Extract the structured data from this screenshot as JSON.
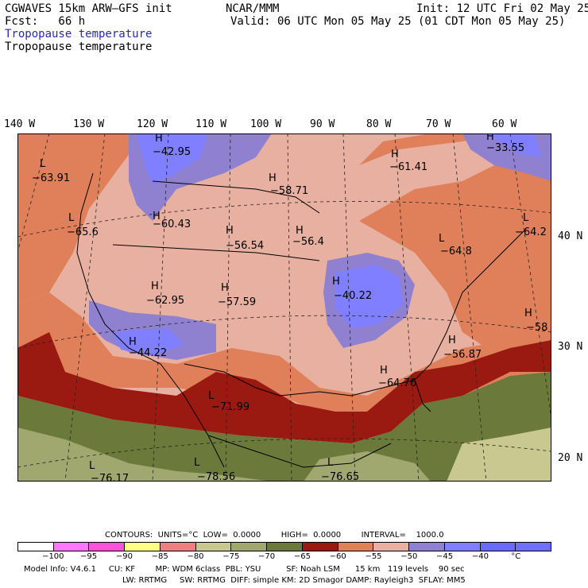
{
  "header": {
    "model": "CGWAVES 15km ARW–GFS init",
    "fcst_label": "Fcst:   66 h",
    "org": "NCAR/MMM",
    "init": "Init: 12 UTC Fri 02 May 25",
    "valid": "Valid: 06 UTC Mon 05 May 25 (01 CDT Mon 05 May 25)",
    "field_blue": "Tropopause temperature",
    "field_black": "Tropopause temperature"
  },
  "axes": {
    "longitudes": [
      "140 W",
      "130 W",
      "120 W",
      "110 W",
      "100 W",
      "90 W",
      "80 W",
      "70 W",
      "60 W"
    ],
    "latitudes": [
      "40 N",
      "30 N",
      "20 N"
    ]
  },
  "map_labels": [
    {
      "hl": "L",
      "value": "−63.91"
    },
    {
      "hl": "L",
      "value": "−65.6"
    },
    {
      "hl": "H",
      "value": "−42.95"
    },
    {
      "hl": "H",
      "value": "−60.43"
    },
    {
      "hl": "H",
      "value": "−56.54"
    },
    {
      "hl": "H",
      "value": "−62.95"
    },
    {
      "hl": "H",
      "value": "−57.59"
    },
    {
      "hl": "H",
      "value": "−44.22"
    },
    {
      "hl": "L",
      "value": "−71.99"
    },
    {
      "hl": "L",
      "value": "−76.17"
    },
    {
      "hl": "L",
      "value": "−78.56"
    },
    {
      "hl": "L",
      "value": "−76.65"
    },
    {
      "hl": "H",
      "value": "−58.71"
    },
    {
      "hl": "H",
      "value": "−56.4"
    },
    {
      "hl": "H",
      "value": "−40.22"
    },
    {
      "hl": "H",
      "value": "−64.76"
    },
    {
      "hl": "H",
      "value": "−56.87"
    },
    {
      "hl": "H",
      "value": "−61.41"
    },
    {
      "hl": "H",
      "value": "−33.55"
    },
    {
      "hl": "L",
      "value": "−64.8"
    },
    {
      "hl": "L",
      "value": "−64.2"
    },
    {
      "hl": "H",
      "value": "−58"
    }
  ],
  "contours": {
    "line": "CONTOURS:  UNITS=°C  LOW=  0.0000        HIGH=  0.0000        INTERVAL=    1000.0"
  },
  "colorbar": {
    "colors": [
      "#ffffff",
      "#ff77ff",
      "#ff55d5",
      "#ffff88",
      "#f08080",
      "#c8c890",
      "#a0a870",
      "#6b7a3a",
      "#9a1a12",
      "#e0805a",
      "#e8b0a0",
      "#9080d0",
      "#7f7fff",
      "#6a6aff",
      "#7070ff"
    ],
    "labels": [
      "−100",
      "−95",
      "−90",
      "−85",
      "−80",
      "−75",
      "−70",
      "−65",
      "−60",
      "−55",
      "−50",
      "−45",
      "−40",
      "°C"
    ]
  },
  "footer": {
    "line1": "Model Info: V4.6.1     CU: KF        MP: WDM 6class  PBL: YSU          SF: Noah LSM      15 km   119 levels    90 sec",
    "line2": "LW: RRTMG     SW: RRTMG  DIFF: simple KM: 2D Smagor DAMP: Rayleigh3  SFLAY: MM5"
  }
}
